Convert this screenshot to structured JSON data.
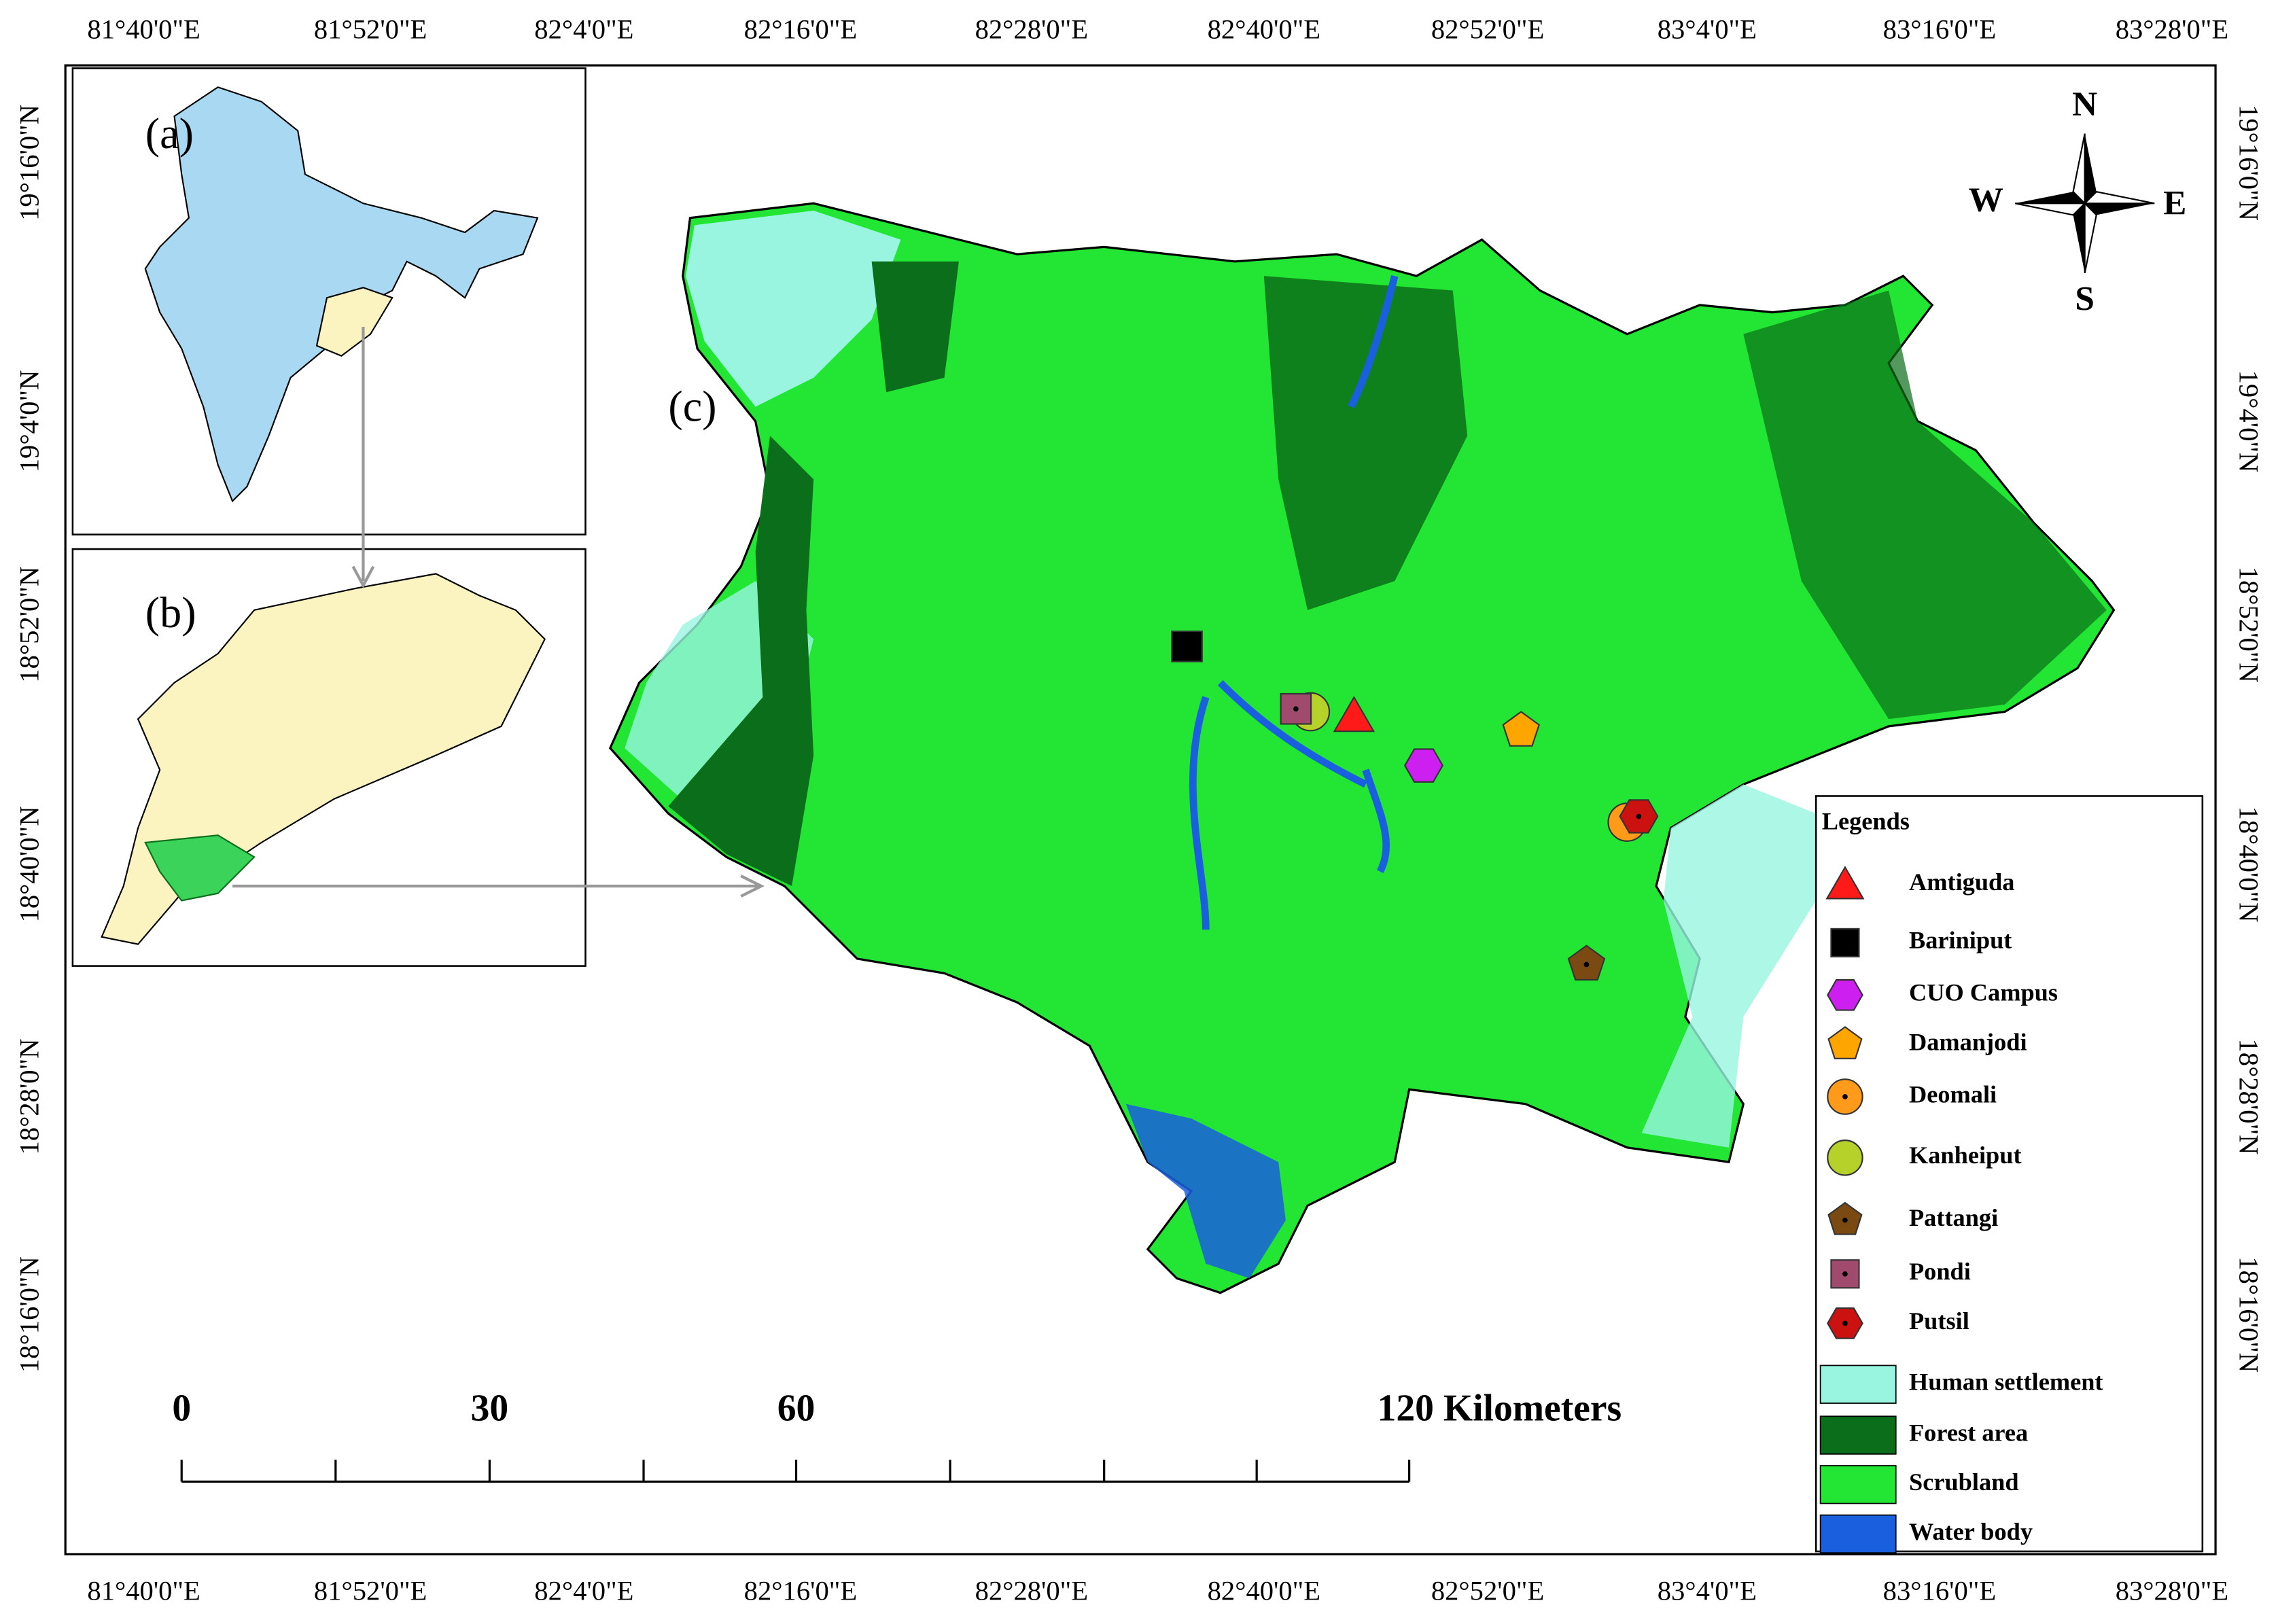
{
  "top_labels": [
    "81°40'0\"E",
    "81°52'0\"E",
    "82°4'0\"E",
    "82°16'0\"E",
    "82°28'0\"E",
    "82°40'0\"E",
    "82°52'0\"E",
    "83°4'0\"E",
    "83°16'0\"E",
    "83°28'0\"E"
  ],
  "bottom_labels": [
    "81°40'0\"E",
    "81°52'0\"E",
    "82°4'0\"E",
    "82°16'0\"E",
    "82°28'0\"E",
    "82°40'0\"E",
    "82°52'0\"E",
    "83°4'0\"E",
    "83°16'0\"E",
    "83°28'0\"E"
  ],
  "left_labels": [
    "19°16'0\"N",
    "19°4'0\"N",
    "18°52'0\"N",
    "18°40'0\"N",
    "18°28'0\"N",
    "18°16'0\"N"
  ],
  "right_labels": [
    "19°16'0\"N",
    "19°4'0\"N",
    "18°52'0\"N",
    "18°40'0\"N",
    "18°28'0\"N",
    "18°16'0\"N"
  ],
  "panels": {
    "a": "(a)",
    "b": "(b)",
    "c": "(c)"
  },
  "compass": {
    "n": "N",
    "s": "S",
    "e": "E",
    "w": "W"
  },
  "scale_bar": {
    "labels": [
      "0",
      "30",
      "60",
      "120 Kilometers"
    ]
  },
  "legend": {
    "title": "Legends",
    "sites": [
      "Amtiguda",
      "Bariniput",
      "CUO Campus",
      "Damanjodi",
      "Deomali",
      "Kanheiput",
      "Pattangi",
      "Pondi",
      "Putsil"
    ],
    "land_cover": [
      "Human settlement",
      "Forest area",
      "Scrubland",
      "Water body"
    ]
  }
}
